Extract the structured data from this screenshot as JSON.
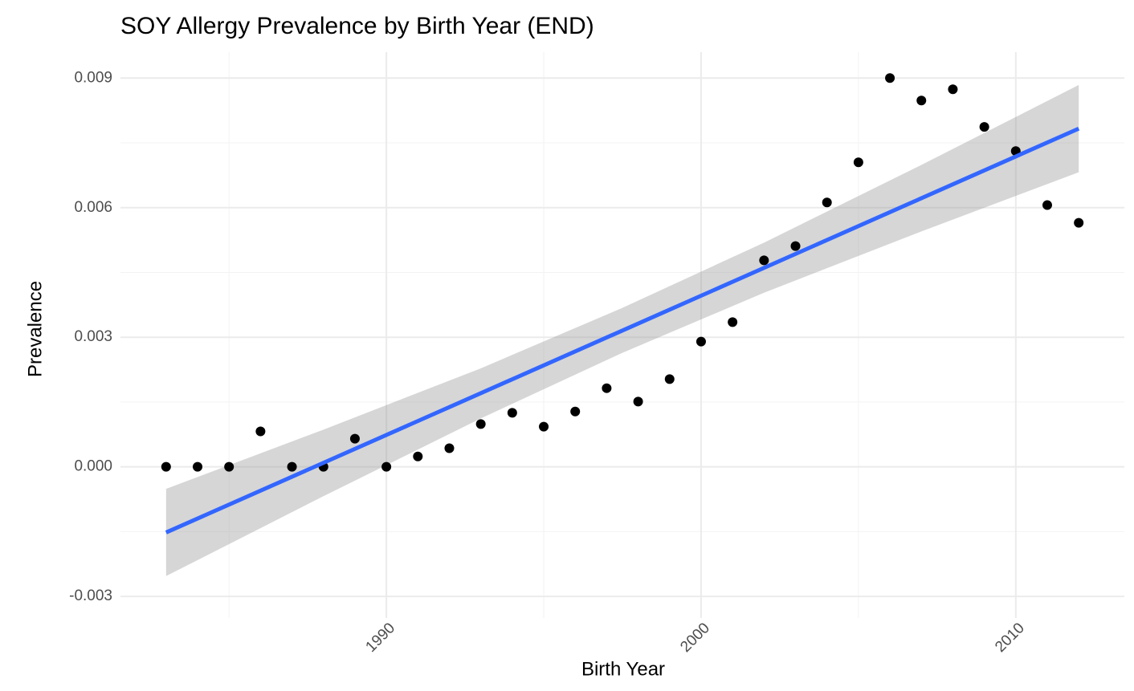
{
  "chart_data": {
    "type": "scatter",
    "title": "SOY Allergy Prevalence by Birth Year (END)",
    "x_label": "Birth Year",
    "y_label": "Prevalence",
    "x": [
      1983,
      1984,
      1985,
      1986,
      1987,
      1988,
      1989,
      1990,
      1991,
      1992,
      1993,
      1994,
      1995,
      1996,
      1997,
      1998,
      1999,
      2000,
      2001,
      2002,
      2003,
      2004,
      2005,
      2006,
      2007,
      2008,
      2009,
      2010,
      2011,
      2012
    ],
    "values": [
      0,
      0,
      0,
      0.00082,
      0,
      0,
      0.00065,
      0,
      0.00024,
      0.00043,
      0.00099,
      0.00125,
      0.00093,
      0.00128,
      0.00182,
      0.00151,
      0.00203,
      0.0029,
      0.00335,
      0.00478,
      0.00511,
      0.00612,
      0.00705,
      0.009,
      0.00848,
      0.00874,
      0.00787,
      0.00731,
      0.00606,
      0.00565
    ],
    "color": "#000000",
    "fit": {
      "x": [
        1983,
        2012
      ],
      "values": [
        -0.00152,
        0.00783
      ],
      "color": "#3366ff"
    },
    "band": {
      "x": [
        1983,
        1988,
        1993,
        1997.5,
        2002,
        2007,
        2012
      ],
      "lower": [
        -0.00253,
        -0.00068,
        0.00112,
        0.00264,
        0.00403,
        0.00545,
        0.00682
      ],
      "upper": [
        -0.00051,
        0.00086,
        0.00228,
        0.00368,
        0.00519,
        0.00699,
        0.00884
      ],
      "color": "#999999"
    },
    "xlim": [
      1981.55,
      2013.45
    ],
    "ylim": [
      -0.0035,
      0.0096
    ],
    "xticks": [
      1990,
      2000,
      2010
    ],
    "yticks": [
      -0.003,
      {
        "value": 0,
        "label": "0.000"
      },
      0.003,
      0.006,
      0.009
    ],
    "xminor": [
      1985,
      1995,
      2005
    ],
    "yminor": [
      -0.0015,
      0.0015,
      0.0045,
      0.0075
    ],
    "grid": true
  }
}
